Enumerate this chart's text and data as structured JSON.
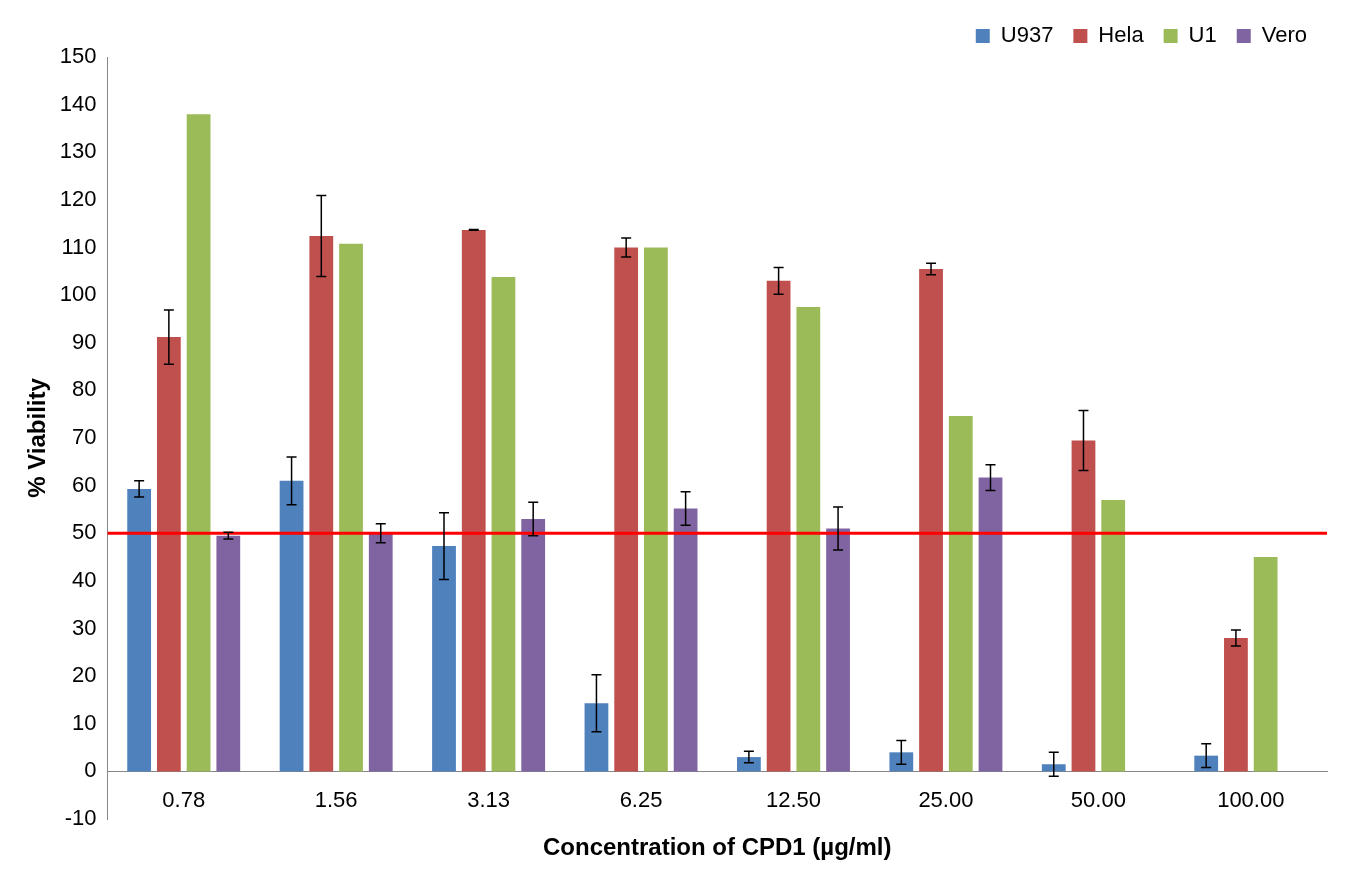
{
  "chart_data": {
    "type": "bar",
    "xlabel": "Concentration of CPD1 (µg/ml)",
    "ylabel": "% Viability",
    "categories": [
      "0.78",
      "1.56",
      "3.13",
      "6.25",
      "12.50",
      "25.00",
      "50.00",
      "100.00"
    ],
    "series": [
      {
        "name": "U937",
        "color": "#4f81bd",
        "values": [
          59.3,
          61,
          47.3,
          14.3,
          3,
          4,
          1.5,
          3.3
        ],
        "errors": [
          1.7,
          5,
          7,
          6,
          1.2,
          2.5,
          2.5,
          2.5
        ]
      },
      {
        "name": "Hela",
        "color": "#c0504d",
        "values": [
          91.2,
          112.4,
          113.7,
          110,
          103,
          105.5,
          69.5,
          28
        ],
        "errors": [
          5.7,
          8.5,
          0.1,
          2,
          2.8,
          1.2,
          6.3,
          1.7
        ]
      },
      {
        "name": "U1",
        "color": "#9bbb59",
        "values": [
          138,
          110.8,
          103.8,
          110,
          97.5,
          74.6,
          57,
          45
        ]
      },
      {
        "name": "Vero",
        "color": "#8064a2",
        "values": [
          49.5,
          50,
          53,
          55.2,
          51,
          61.7,
          null,
          null
        ],
        "errors": [
          0.7,
          2,
          3.5,
          3.5,
          4.5,
          2.7,
          null,
          null
        ]
      }
    ],
    "ylim": [
      -10,
      150
    ],
    "yticks": [
      -10,
      0,
      10,
      20,
      30,
      40,
      50,
      60,
      70,
      80,
      90,
      100,
      110,
      120,
      130,
      140,
      150
    ],
    "ref_lines": [
      {
        "axis": "y",
        "value": 50,
        "color": "#ff0000"
      }
    ],
    "legend": "top right",
    "grid": false
  }
}
